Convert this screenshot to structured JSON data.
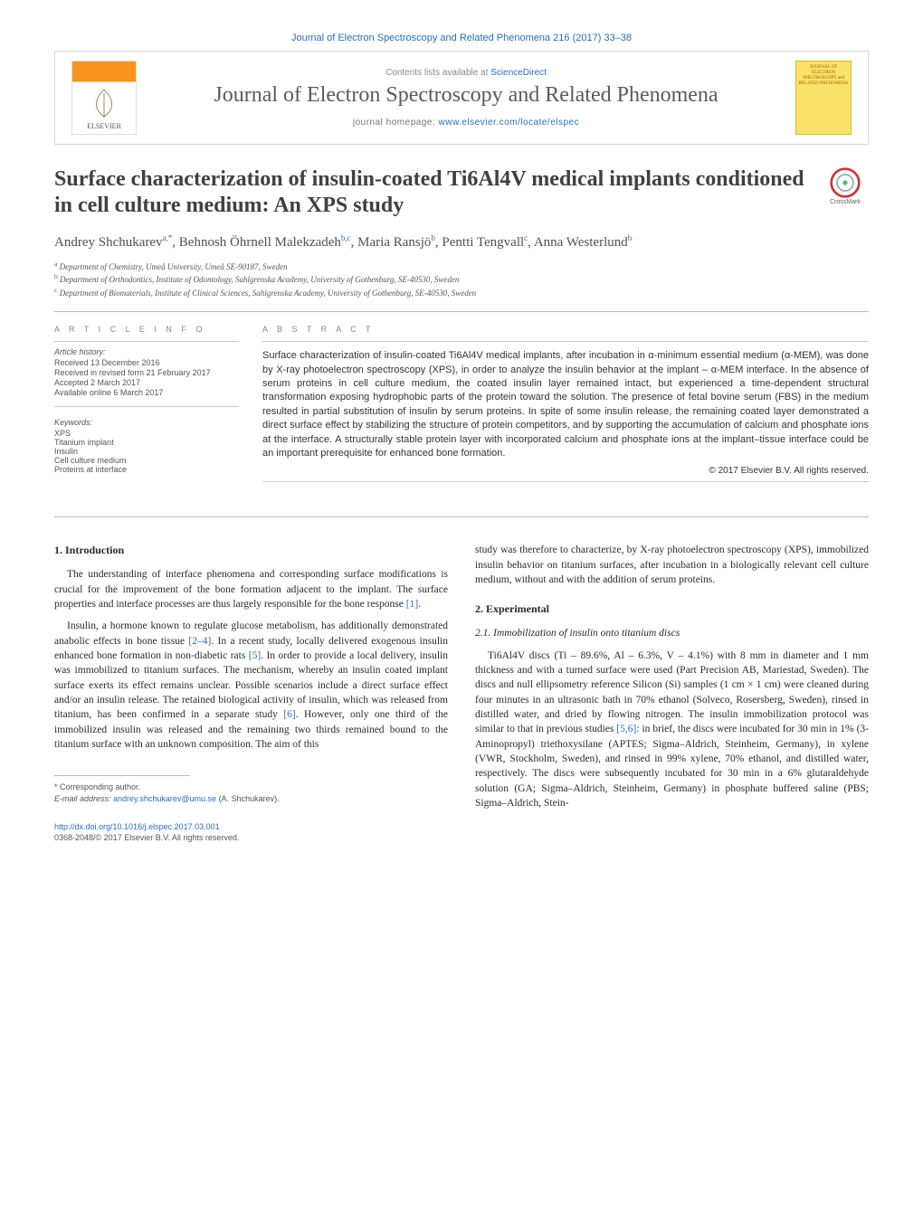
{
  "top_link": {
    "pre": "",
    "journal": "Journal of Electron Spectroscopy and Related Phenomena 216 (2017) 33–38"
  },
  "banner": {
    "elsevier": "ELSEVIER",
    "contents_pre": "Contents lists available at ",
    "contents_link": "ScienceDirect",
    "journal_title": "Journal of Electron Spectroscopy and Related Phenomena",
    "homepage_pre": "journal homepage: ",
    "homepage_link": "www.elsevier.com/locate/elspec",
    "cover_text": "JOURNAL OF ELECTRON SPECTROSCOPY and RELATED PHENOMENA"
  },
  "title": "Surface characterization of insulin-coated Ti6Al4V medical implants conditioned in cell culture medium: An XPS study",
  "crossmark_label": "CrossMark",
  "authors_html": "Andrey Shchukarev<sup>a,*</sup>, Behnosh Öhrnell Malekzadeh<sup>b,c</sup>, Maria Ransjö<sup>b</sup>, Pentti Tengvall<sup>c</sup>, Anna Westerlund<sup>b</sup>",
  "affiliations": [
    {
      "sup": "a",
      "text": "Department of Chemistry, Umeå University, Umeå SE-90187, Sweden"
    },
    {
      "sup": "b",
      "text": "Department of Orthodontics, Institute of Odontology, Sahlgrenska Academy, University of Gothenburg, SE-40530, Sweden"
    },
    {
      "sup": "c",
      "text": "Department of Biomaterials, Institute of Clinical Sciences, Sahlgrenska Academy, University of Gothenburg, SE-40530, Sweden"
    }
  ],
  "info_heading": "A R T I C L E  I N F O",
  "abstract_heading": "A B S T R A C T",
  "history_label": "Article history:",
  "history": [
    "Received 13 December 2016",
    "Received in revised form 21 February 2017",
    "Accepted 2 March 2017",
    "Available online 6 March 2017"
  ],
  "keywords_label": "Keywords:",
  "keywords": [
    "XPS",
    "Titanium implant",
    "Insulin",
    "Cell culture medium",
    "Proteins at interface"
  ],
  "abstract_text": "Surface characterization of insulin-coated Ti6Al4V medical implants, after incubation in α-minimum essential medium (α-MEM), was done by X-ray photoelectron spectroscopy (XPS), in order to analyze the insulin behavior at the implant – α-MEM interface. In the absence of serum proteins in cell culture medium, the coated insulin layer remained intact, but experienced a time-dependent structural transformation exposing hydrophobic parts of the protein toward the solution. The presence of fetal bovine serum (FBS) in the medium resulted in partial substitution of insulin by serum proteins. In spite of some insulin release, the remaining coated layer demonstrated a direct surface effect by stabilizing the structure of protein competitors, and by supporting the accumulation of calcium and phosphate ions at the interface. A structurally stable protein layer with incorporated calcium and phosphate ions at the implant–tissue interface could be an important prerequisite for enhanced bone formation.",
  "copyright": "© 2017 Elsevier B.V. All rights reserved.",
  "sections": {
    "intro_h": "1. Introduction",
    "intro_p1_pre": "The understanding of interface phenomena and corresponding surface modifications is crucial for the improvement of the bone formation adjacent to the implant. The surface properties and interface processes are thus largely responsible for the bone response ",
    "intro_p1_ref": "[1]",
    "intro_p1_post": ".",
    "intro_p2_a": "Insulin, a hormone known to regulate glucose metabolism, has additionally demonstrated anabolic effects in bone tissue ",
    "intro_p2_ref1": "[2–4]",
    "intro_p2_b": ". In a recent study, locally delivered exogenous insulin enhanced bone formation in non-diabetic rats ",
    "intro_p2_ref2": "[5]",
    "intro_p2_c": ". In order to provide a local delivery, insulin was immobilized to titanium surfaces. The mechanism, whereby an insulin coated implant surface exerts its effect remains unclear. Possible scenarios include a direct surface effect and/or an insulin release. The retained biological activity of insulin, which was released from titanium, has been confirmed in a separate study ",
    "intro_p2_ref3": "[6]",
    "intro_p2_d": ". However, only one third of the immobilized insulin was released and the remaining two thirds remained bound to the titanium surface with an unknown composition. The aim of this ",
    "intro_p3": "study was therefore to characterize, by X-ray photoelectron spectroscopy (XPS), immobilized insulin behavior on titanium surfaces, after incubation in a biologically relevant cell culture medium, without and with the addition of serum proteins.",
    "exp_h": "2. Experimental",
    "exp_sub_h": "2.1. Immobilization of insulin onto titanium discs",
    "exp_p1_a": "Ti6Al4V discs (Ti – 89.6%, Al – 6.3%, V – 4.1%) with 8 mm in diameter and 1 mm thickness and with a turned surface were used (Part Precision AB, Mariestad, Sweden). The discs and null ellipsometry reference Silicon (Si) samples (1 cm × 1 cm) were cleaned during four minutes in an ultrasonic bath in 70% ethanol (Solveco, Rosersberg, Sweden), rinsed in distilled water, and dried by flowing nitrogen. The insulin immobilization protocol was similar to that in previous studies ",
    "exp_p1_ref": "[5,6]",
    "exp_p1_b": ": in brief, the discs were incubated for 30 min in 1% (3-Aminopropyl) triethoxysilane (APTES; Sigma–Aldrich, Steinheim, Germany), in xylene (VWR, Stockholm, Sweden), and rinsed in 99% xylene, 70% ethanol, and distilled water, respectively. The discs were subsequently incubated for 30 min in a 6% glutaraldehyde solution (GA; Sigma–Aldrich, Steinheim, Germany) in phosphate buffered saline (PBS; Sigma–Aldrich, Stein-"
  },
  "corresponding": {
    "star": "* Corresponding author.",
    "email_label": "E-mail address: ",
    "email": "andrey.shchukarev@umu.se",
    "who": " (A. Shchukarev)."
  },
  "doi": {
    "link": "http://dx.doi.org/10.1016/j.elspec.2017.03.001",
    "issn_line": "0368-2048/© 2017 Elsevier B.V. All rights reserved."
  },
  "colors": {
    "link": "#2a6ebb",
    "text": "#333333",
    "muted": "#888888",
    "rule": "#bbbbbb"
  }
}
